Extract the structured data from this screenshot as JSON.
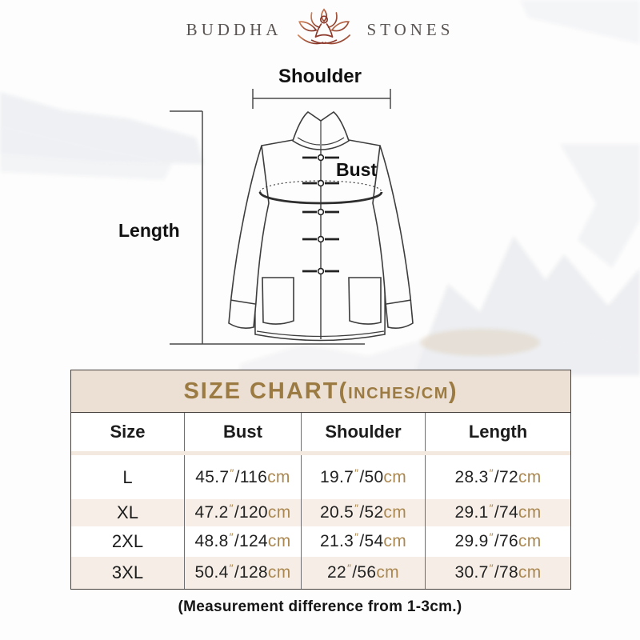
{
  "brand": {
    "left": "BUDDHA",
    "right": "STONES",
    "icon": "lotus-meditation-icon"
  },
  "diagram": {
    "shoulder_label": "Shoulder",
    "bust_label": "Bust",
    "length_label": "Length"
  },
  "size_chart": {
    "title_main": "SIZE CHART(",
    "title_units": "INCHES/CM",
    "title_close": ")",
    "columns": [
      "Size",
      "Bust",
      "Shoulder",
      "Length"
    ],
    "units": {
      "inch_mark": "″",
      "cm_suffix": "cm"
    },
    "rows": [
      {
        "size": "L",
        "bust": {
          "in": "45.7",
          "cm": "116"
        },
        "shoulder": {
          "in": "19.7",
          "cm": "50"
        },
        "length": {
          "in": "28.3",
          "cm": "72"
        }
      },
      {
        "size": "XL",
        "bust": {
          "in": "47.2",
          "cm": "120"
        },
        "shoulder": {
          "in": "20.5",
          "cm": "52"
        },
        "length": {
          "in": "29.1",
          "cm": "74"
        }
      },
      {
        "size": "2XL",
        "bust": {
          "in": "48.8",
          "cm": "124"
        },
        "shoulder": {
          "in": "21.3",
          "cm": "54"
        },
        "length": {
          "in": "29.9",
          "cm": "76"
        }
      },
      {
        "size": "3XL",
        "bust": {
          "in": "50.4",
          "cm": "128"
        },
        "shoulder": {
          "in": "22",
          "cm": "56"
        },
        "length": {
          "in": "30.7",
          "cm": "78"
        }
      }
    ]
  },
  "note": "(Measurement difference from 1-3cm.)",
  "colors": {
    "title_gold": "#9c7b43",
    "unit_gold": "#ab8851",
    "band_bg": "#ece0d4",
    "alt_row_bg": "#f7efe7",
    "table_border": "#45403b",
    "text": "#1c1c1c",
    "logo_text": "#595351",
    "lotus_gradient_start": "#d4845a",
    "lotus_gradient_end": "#7c2d22"
  }
}
